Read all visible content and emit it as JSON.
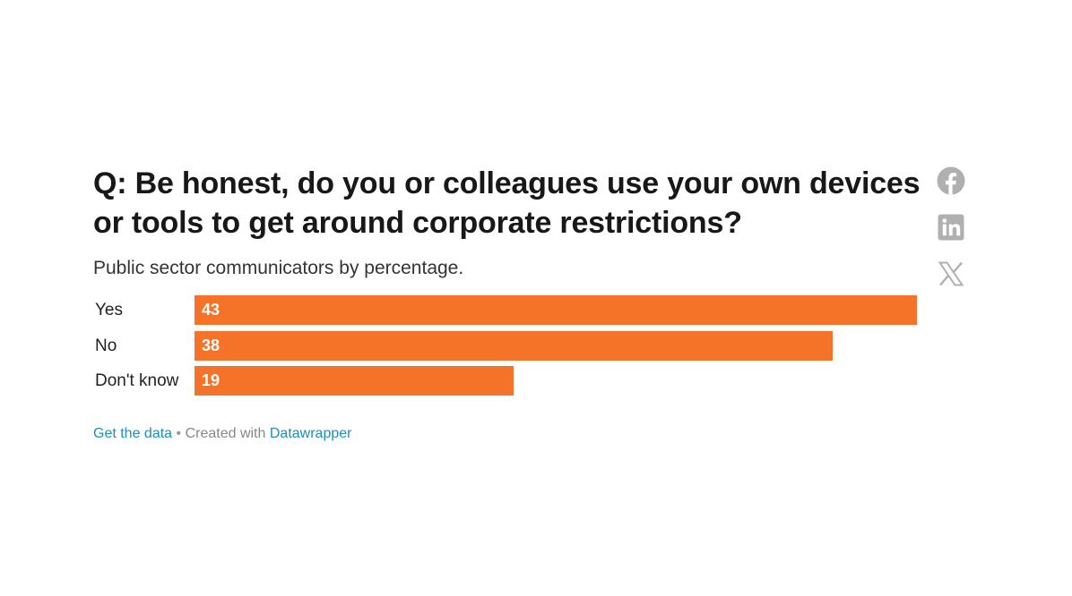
{
  "chart_data": {
    "type": "bar",
    "orientation": "horizontal",
    "title": "Q: Be honest, do you or colleagues use your own devices or tools to get around corporate restrictions?",
    "subtitle": "Public sector communicators by percentage.",
    "categories": [
      "Yes",
      "No",
      "Don't know"
    ],
    "values": [
      43,
      38,
      19
    ],
    "value_labels": [
      "43",
      "38",
      "19"
    ],
    "xlim": [
      0,
      43
    ],
    "bar_color": "#f47328",
    "grid": false,
    "legend": "none"
  },
  "footer": {
    "get_data_label": "Get the data",
    "separator": "•",
    "created_with_label": "Created with",
    "tool_label": "Datawrapper"
  },
  "share": {
    "icons": [
      "facebook-icon",
      "linkedin-icon",
      "x-icon"
    ],
    "icon_color": "#b0b0b0"
  },
  "colors": {
    "link": "#1d8fb8",
    "footer_text": "#888888"
  }
}
